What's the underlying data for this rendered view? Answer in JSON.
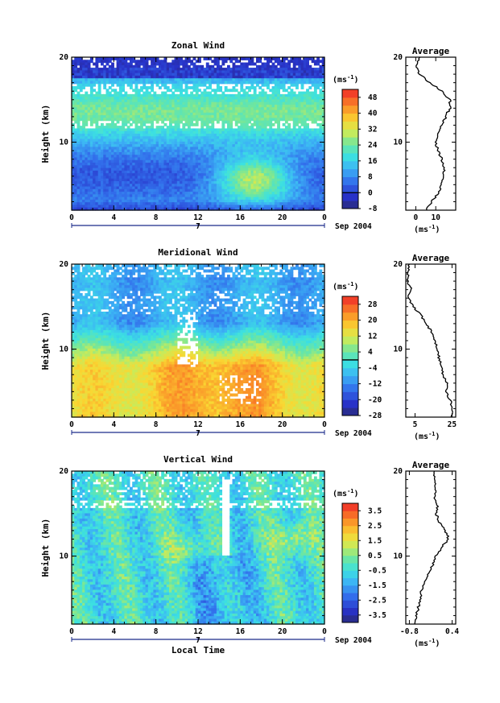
{
  "chart_data": [
    {
      "type": "heatmap",
      "title": "Zonal Wind",
      "ylabel": "Height (km)",
      "xlabel": "",
      "x_ticks": [
        "0",
        "4",
        "8",
        "12",
        "16",
        "20",
        "0"
      ],
      "y_ticks": [
        "20",
        "10"
      ],
      "xlim": [
        0,
        24
      ],
      "ylim": [
        2,
        20
      ],
      "date_marker": "7",
      "date_label": "Sep 2004",
      "colorbar": {
        "unit_base": "(ms",
        "unit_exp": "-1",
        "unit_close": ")",
        "labels": [
          "48",
          "40",
          "32",
          "24",
          "16",
          "8",
          "0",
          "-8"
        ],
        "min": -8,
        "max": 52,
        "step": 4,
        "contour_at": 0
      },
      "average": {
        "title": "Average",
        "x_ticks": [
          "0",
          "10"
        ],
        "xlim": [
          -5,
          20
        ],
        "unit_base": "(ms",
        "unit_exp": "-1",
        "unit_close": ")",
        "profile": [
          [
            2,
            5
          ],
          [
            3,
            8
          ],
          [
            4,
            11
          ],
          [
            5,
            13
          ],
          [
            6,
            14
          ],
          [
            7,
            14
          ],
          [
            8,
            13
          ],
          [
            9,
            11
          ],
          [
            10,
            10
          ],
          [
            11,
            11
          ],
          [
            12,
            13
          ],
          [
            13,
            15
          ],
          [
            14,
            17
          ],
          [
            15,
            17
          ],
          [
            16,
            13
          ],
          [
            17,
            7
          ],
          [
            18,
            2
          ],
          [
            19,
            0
          ],
          [
            20,
            2
          ]
        ]
      }
    },
    {
      "type": "heatmap",
      "title": "Meridional Wind",
      "ylabel": "Height (km)",
      "xlabel": "",
      "x_ticks": [
        "0",
        "4",
        "8",
        "12",
        "16",
        "20",
        "0"
      ],
      "y_ticks": [
        "20",
        "10"
      ],
      "xlim": [
        0,
        24
      ],
      "ylim": [
        2,
        20
      ],
      "date_marker": "7",
      "date_label": "Sep 2004",
      "colorbar": {
        "unit_base": "(ms",
        "unit_exp": "-1",
        "unit_close": ")",
        "labels": [
          "28",
          "20",
          "12",
          "4",
          "-4",
          "-12",
          "-20",
          "-28"
        ],
        "min": -28,
        "max": 32,
        "step": 4,
        "contour_at": 0
      },
      "average": {
        "title": "Average",
        "x_ticks": [
          "5",
          "25"
        ],
        "xlim": [
          0,
          27
        ],
        "unit_base": "(ms",
        "unit_exp": "-1",
        "unit_close": ")",
        "profile": [
          [
            2,
            25
          ],
          [
            3,
            25
          ],
          [
            4,
            24
          ],
          [
            5,
            22
          ],
          [
            6,
            22
          ],
          [
            7,
            20
          ],
          [
            8,
            19
          ],
          [
            9,
            18
          ],
          [
            10,
            17
          ],
          [
            11,
            16
          ],
          [
            12,
            14
          ],
          [
            13,
            11
          ],
          [
            14,
            8
          ],
          [
            15,
            4
          ],
          [
            16,
            1
          ],
          [
            17,
            3
          ],
          [
            18,
            1
          ],
          [
            19,
            1
          ],
          [
            20,
            2
          ]
        ]
      }
    },
    {
      "type": "heatmap",
      "title": "Vertical Wind",
      "ylabel": "Height (km)",
      "xlabel": "Local Time",
      "x_ticks": [
        "0",
        "4",
        "8",
        "12",
        "16",
        "20",
        "0"
      ],
      "y_ticks": [
        "20",
        "10"
      ],
      "xlim": [
        0,
        24
      ],
      "ylim": [
        2,
        20
      ],
      "date_marker": "7",
      "date_label": "Sep 2004",
      "colorbar": {
        "unit_base": "(ms",
        "unit_exp": "-1",
        "unit_close": ")",
        "labels": [
          "3.5",
          "2.5",
          "1.5",
          "0.5",
          "-0.5",
          "-1.5",
          "-2.5",
          "-3.5"
        ],
        "min": -4,
        "max": 4,
        "step": 0.5,
        "contour_at": null
      },
      "average": {
        "title": "Average",
        "x_ticks": [
          "-0.8",
          "0.4"
        ],
        "xlim": [
          -0.9,
          0.5
        ],
        "unit_base": "(ms",
        "unit_exp": "-1",
        "unit_close": ")",
        "profile": [
          [
            2,
            -0.65
          ],
          [
            3,
            -0.6
          ],
          [
            4,
            -0.55
          ],
          [
            5,
            -0.5
          ],
          [
            6,
            -0.45
          ],
          [
            7,
            -0.35
          ],
          [
            8,
            -0.25
          ],
          [
            9,
            -0.15
          ],
          [
            10,
            -0.05
          ],
          [
            11,
            0.1
          ],
          [
            12,
            0.3
          ],
          [
            13,
            0.2
          ],
          [
            14,
            0.05
          ],
          [
            15,
            -0.05
          ],
          [
            16,
            0.0
          ],
          [
            17,
            -0.1
          ],
          [
            18,
            -0.05
          ],
          [
            19,
            -0.1
          ],
          [
            20,
            -0.1
          ]
        ]
      }
    }
  ]
}
